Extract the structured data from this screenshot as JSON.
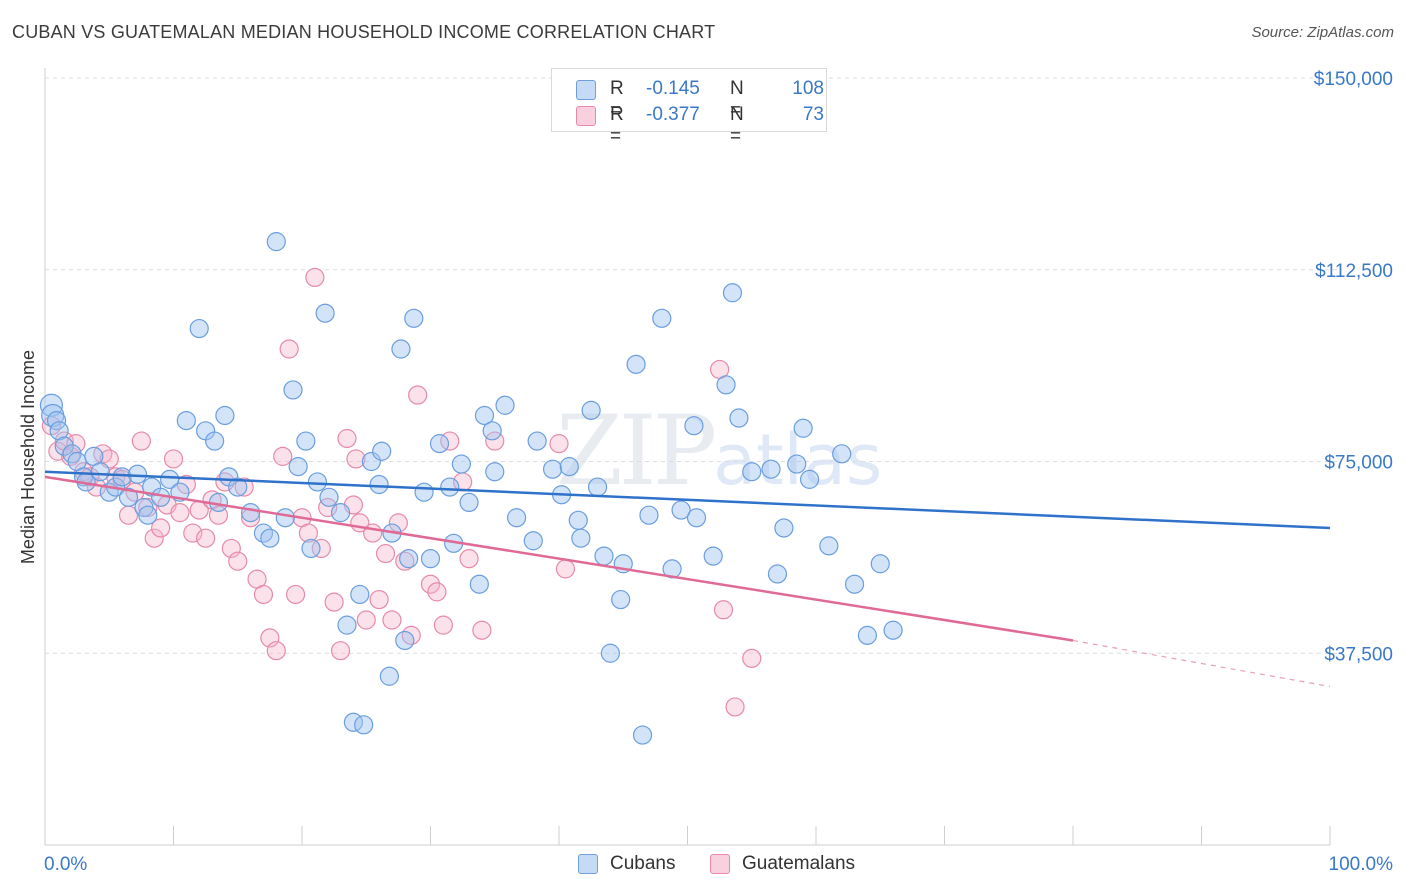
{
  "title": "CUBAN VS GUATEMALAN MEDIAN HOUSEHOLD INCOME CORRELATION CHART",
  "source": "Source: ZipAtlas.com",
  "watermark": {
    "zip": "ZIP",
    "atlas": "atlas"
  },
  "legend": {
    "rows": [
      {
        "r_label": "R =",
        "r_value": "-0.145",
        "n_label": "N =",
        "n_value": "108",
        "color": "#a9c8ef"
      },
      {
        "r_label": "R =",
        "r_value": "-0.377",
        "n_label": "N =",
        "n_value": "73",
        "color": "#f4b8cb"
      }
    ]
  },
  "bottom_legend": [
    {
      "label": "Cubans",
      "color": "#a9c8ef"
    },
    {
      "label": "Guatemalans",
      "color": "#f4b8cb"
    }
  ],
  "chart_data": {
    "type": "scatter",
    "xlabel": "",
    "ylabel": "Median Household Income",
    "x_tick_labels": [
      "0.0%",
      "100.0%"
    ],
    "y_tick_labels": [
      "$37,500",
      "$75,000",
      "$112,500",
      "$150,000"
    ],
    "y_ticks": [
      37500,
      75000,
      112500,
      150000
    ],
    "xlim": [
      0,
      100
    ],
    "ylim": [
      0,
      155000
    ],
    "grid": "horizontal dashed",
    "colors": {
      "cubans": "#3a78c8",
      "guatemalans": "#e06a96"
    },
    "series": [
      {
        "name": "Cubans",
        "trend": {
          "x": [
            0,
            100
          ],
          "y": [
            73000,
            62000
          ]
        },
        "points": [
          [
            0.5,
            86000
          ],
          [
            0.6,
            84000
          ],
          [
            0.9,
            83000
          ],
          [
            1.1,
            81000
          ],
          [
            1.5,
            78000
          ],
          [
            2.1,
            76500
          ],
          [
            2.5,
            75000
          ],
          [
            3.0,
            72000
          ],
          [
            3.2,
            71000
          ],
          [
            3.8,
            76000
          ],
          [
            4.3,
            73000
          ],
          [
            5.0,
            69000
          ],
          [
            5.5,
            70000
          ],
          [
            6.0,
            72000
          ],
          [
            6.5,
            68000
          ],
          [
            7.2,
            72500
          ],
          [
            7.7,
            66000
          ],
          [
            8.0,
            64500
          ],
          [
            8.3,
            70000
          ],
          [
            9.0,
            68000
          ],
          [
            9.7,
            71500
          ],
          [
            10.5,
            69000
          ],
          [
            11.0,
            83000
          ],
          [
            12.0,
            101000
          ],
          [
            12.5,
            81000
          ],
          [
            13.2,
            79000
          ],
          [
            14.0,
            84000
          ],
          [
            14.3,
            72000
          ],
          [
            15.0,
            70000
          ],
          [
            13.5,
            67000
          ],
          [
            16.0,
            65000
          ],
          [
            17.0,
            61000
          ],
          [
            17.5,
            60000
          ],
          [
            18.0,
            118000
          ],
          [
            18.7,
            64000
          ],
          [
            19.3,
            89000
          ],
          [
            19.7,
            74000
          ],
          [
            20.3,
            79000
          ],
          [
            20.7,
            58000
          ],
          [
            21.2,
            71000
          ],
          [
            21.8,
            104000
          ],
          [
            22.1,
            68000
          ],
          [
            23.0,
            65000
          ],
          [
            23.5,
            43000
          ],
          [
            24.0,
            24000
          ],
          [
            24.5,
            49000
          ],
          [
            24.8,
            23500
          ],
          [
            25.4,
            75000
          ],
          [
            26.0,
            70500
          ],
          [
            26.2,
            77000
          ],
          [
            27.0,
            61000
          ],
          [
            27.7,
            97000
          ],
          [
            28.0,
            40000
          ],
          [
            28.3,
            56000
          ],
          [
            28.7,
            103000
          ],
          [
            29.5,
            69000
          ],
          [
            30.0,
            56000
          ],
          [
            30.7,
            78500
          ],
          [
            31.5,
            70000
          ],
          [
            31.8,
            59000
          ],
          [
            32.4,
            74500
          ],
          [
            33.0,
            67000
          ],
          [
            33.8,
            51000
          ],
          [
            34.2,
            84000
          ],
          [
            34.8,
            81000
          ],
          [
            35.0,
            73000
          ],
          [
            35.8,
            86000
          ],
          [
            36.7,
            64000
          ],
          [
            38.0,
            59500
          ],
          [
            39.5,
            73500
          ],
          [
            40.2,
            68500
          ],
          [
            40.8,
            74000
          ],
          [
            41.5,
            63500
          ],
          [
            41.7,
            60000
          ],
          [
            42.5,
            85000
          ],
          [
            43.5,
            56500
          ],
          [
            44.0,
            37500
          ],
          [
            45.0,
            55000
          ],
          [
            46.0,
            94000
          ],
          [
            47.0,
            64500
          ],
          [
            48.0,
            103000
          ],
          [
            48.8,
            54000
          ],
          [
            49.5,
            65500
          ],
          [
            50.5,
            82000
          ],
          [
            52.0,
            56500
          ],
          [
            53.0,
            90000
          ],
          [
            53.5,
            108000
          ],
          [
            54.0,
            83500
          ],
          [
            55.0,
            73000
          ],
          [
            56.5,
            73500
          ],
          [
            57.0,
            53000
          ],
          [
            58.5,
            74500
          ],
          [
            59.0,
            81500
          ],
          [
            59.5,
            71500
          ],
          [
            61.0,
            58500
          ],
          [
            62.0,
            76500
          ],
          [
            63.0,
            51000
          ],
          [
            64.0,
            41000
          ],
          [
            65.0,
            55000
          ],
          [
            66.0,
            42000
          ],
          [
            50.7,
            64000
          ],
          [
            57.5,
            62000
          ],
          [
            46.5,
            21500
          ],
          [
            26.8,
            33000
          ],
          [
            38.3,
            79000
          ],
          [
            44.8,
            48000
          ],
          [
            43.0,
            70000
          ]
        ]
      },
      {
        "name": "Guatemalans",
        "trend": {
          "x": [
            0,
            80
          ],
          "y": [
            72000,
            40000
          ],
          "dashed_to": {
            "x": 100,
            "y": 31000
          }
        },
        "points": [
          [
            0.5,
            82000
          ],
          [
            1.0,
            77000
          ],
          [
            1.5,
            79000
          ],
          [
            2.0,
            76000
          ],
          [
            2.4,
            78500
          ],
          [
            3.0,
            73000
          ],
          [
            3.5,
            72000
          ],
          [
            4.0,
            70000
          ],
          [
            4.5,
            76500
          ],
          [
            5.0,
            75500
          ],
          [
            5.5,
            72000
          ],
          [
            6.0,
            71500
          ],
          [
            6.5,
            64500
          ],
          [
            7.0,
            69000
          ],
          [
            7.5,
            79000
          ],
          [
            8.0,
            66000
          ],
          [
            8.5,
            60000
          ],
          [
            9.0,
            62000
          ],
          [
            9.5,
            66500
          ],
          [
            10.0,
            75500
          ],
          [
            10.5,
            65000
          ],
          [
            11.0,
            70500
          ],
          [
            11.5,
            61000
          ],
          [
            12.0,
            65500
          ],
          [
            12.5,
            60000
          ],
          [
            13.0,
            67500
          ],
          [
            13.5,
            64500
          ],
          [
            14.0,
            71000
          ],
          [
            14.5,
            58000
          ],
          [
            15.0,
            55500
          ],
          [
            15.5,
            70000
          ],
          [
            16.0,
            64000
          ],
          [
            16.5,
            52000
          ],
          [
            17.0,
            49000
          ],
          [
            17.5,
            40500
          ],
          [
            18.0,
            38000
          ],
          [
            18.5,
            76000
          ],
          [
            19.0,
            97000
          ],
          [
            19.5,
            49000
          ],
          [
            20.0,
            64000
          ],
          [
            20.5,
            61000
          ],
          [
            21.0,
            111000
          ],
          [
            21.5,
            58000
          ],
          [
            22.0,
            66000
          ],
          [
            22.5,
            47500
          ],
          [
            23.0,
            38000
          ],
          [
            23.5,
            79500
          ],
          [
            24.0,
            66500
          ],
          [
            24.5,
            63000
          ],
          [
            25.0,
            44000
          ],
          [
            25.5,
            61000
          ],
          [
            26.0,
            48000
          ],
          [
            26.5,
            57000
          ],
          [
            27.0,
            44000
          ],
          [
            27.5,
            63000
          ],
          [
            28.0,
            55500
          ],
          [
            28.5,
            41000
          ],
          [
            29.0,
            88000
          ],
          [
            30.0,
            51000
          ],
          [
            30.5,
            49500
          ],
          [
            31.0,
            43000
          ],
          [
            31.5,
            79000
          ],
          [
            32.5,
            71000
          ],
          [
            33.0,
            56000
          ],
          [
            34.0,
            42000
          ],
          [
            35.0,
            79000
          ],
          [
            40.0,
            78500
          ],
          [
            40.5,
            54000
          ],
          [
            52.5,
            93000
          ],
          [
            52.8,
            46000
          ],
          [
            55.0,
            36500
          ],
          [
            53.7,
            27000
          ],
          [
            24.2,
            75500
          ]
        ]
      }
    ]
  }
}
